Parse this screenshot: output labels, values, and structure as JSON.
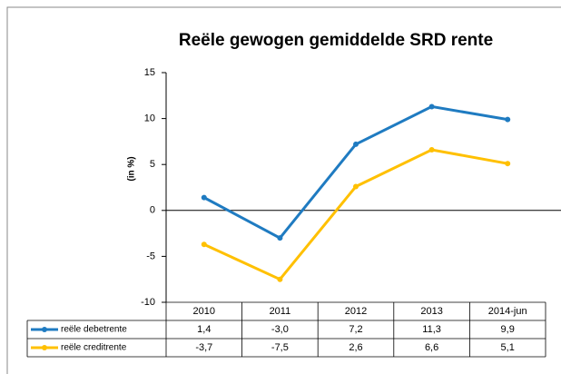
{
  "chart_data": {
    "type": "line",
    "title": "Reële gewogen gemiddelde SRD rente",
    "y_label": "(in %)",
    "categories": [
      "2010",
      "2011",
      "2012",
      "2013",
      "2014-jun"
    ],
    "series": [
      {
        "name": "reële debetrente",
        "color": "#1f7bc1",
        "values": [
          1.4,
          -3.0,
          7.2,
          11.3,
          9.9
        ],
        "value_labels": [
          "1,4",
          "-3,0",
          "7,2",
          "11,3",
          "9,9"
        ]
      },
      {
        "name": "reële creditrente",
        "color": "#ffc000",
        "values": [
          -3.7,
          -7.5,
          2.6,
          6.6,
          5.1
        ],
        "value_labels": [
          "-3,7",
          "-7,5",
          "2,6",
          "6,6",
          "5,1"
        ]
      }
    ],
    "ylim": [
      -10,
      15
    ],
    "yticks": [
      -10,
      -5,
      0,
      5,
      10,
      15
    ],
    "data_table": true
  }
}
